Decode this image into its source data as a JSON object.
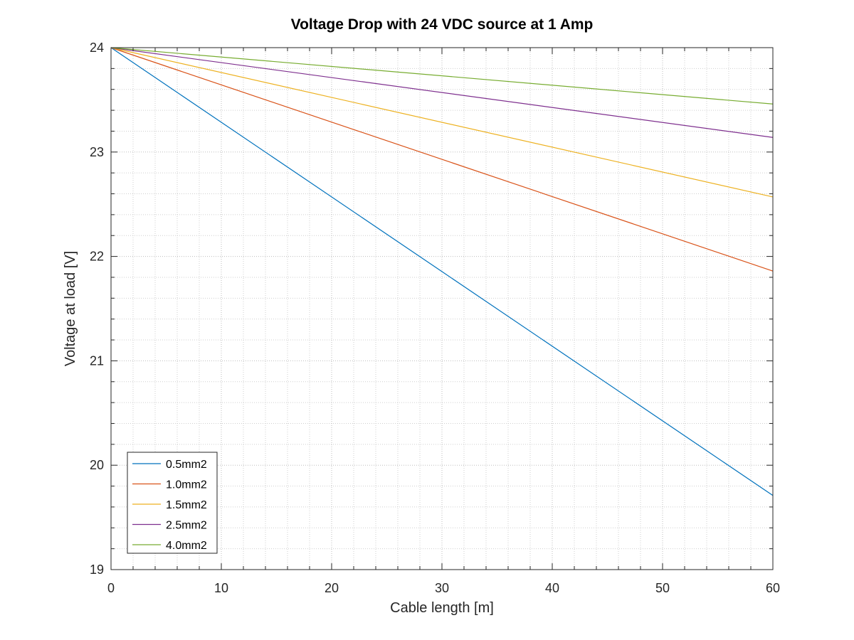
{
  "chart_data": {
    "type": "line",
    "title": "Voltage Drop with 24 VDC source at 1 Amp",
    "xlabel": "Cable length [m]",
    "ylabel": "Voltage at load [V]",
    "xlim": [
      0,
      60
    ],
    "ylim": [
      19,
      24
    ],
    "xticks": [
      0,
      10,
      20,
      30,
      40,
      50,
      60
    ],
    "yticks": [
      19,
      20,
      21,
      22,
      23,
      24
    ],
    "grid": true,
    "minor_grid": true,
    "legend_position": "bottom-left",
    "series": [
      {
        "name": "0.5mm2",
        "color": "#0072BD",
        "x": [
          0,
          60
        ],
        "y": [
          24.0,
          19.71
        ]
      },
      {
        "name": "1.0mm2",
        "color": "#D95319",
        "x": [
          0,
          60
        ],
        "y": [
          24.0,
          21.86
        ]
      },
      {
        "name": "1.5mm2",
        "color": "#EDB120",
        "x": [
          0,
          60
        ],
        "y": [
          24.0,
          22.57
        ]
      },
      {
        "name": "2.5mm2",
        "color": "#7E2F8E",
        "x": [
          0,
          60
        ],
        "y": [
          24.0,
          23.14
        ]
      },
      {
        "name": "4.0mm2",
        "color": "#77AC30",
        "x": [
          0,
          60
        ],
        "y": [
          24.0,
          23.46
        ]
      }
    ]
  }
}
